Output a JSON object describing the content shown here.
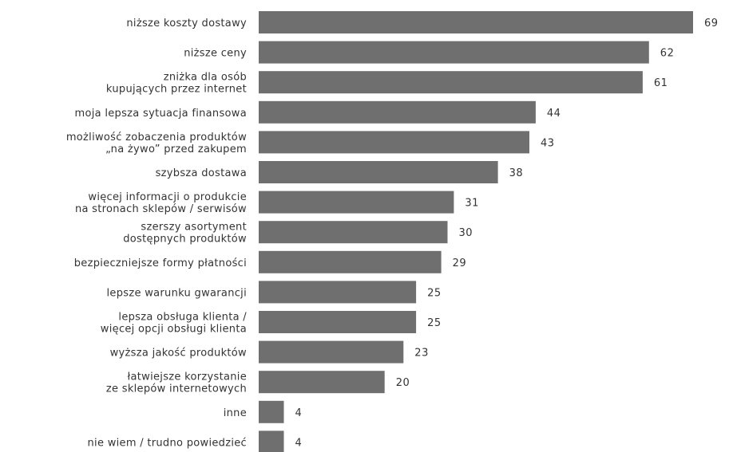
{
  "chart_data": {
    "type": "bar",
    "orientation": "horizontal",
    "bar_color": "#6f6f6f",
    "text_color": "#333333",
    "grid": false,
    "categories": [
      [
        "niższe koszty dostawy"
      ],
      [
        "niższe ceny"
      ],
      [
        "zniżka dla osób",
        "kupujących przez internet"
      ],
      [
        "moja lepsza sytuacja finansowa"
      ],
      [
        "możliwość zobaczenia produktów",
        "„na żywo” przed zakupem"
      ],
      [
        "szybsza dostawa"
      ],
      [
        "więcej informacji o produkcie",
        "na stronach sklepów / serwisów"
      ],
      [
        "szerszy asortyment",
        "dostępnych produktów"
      ],
      [
        "bezpieczniejsze formy płatności"
      ],
      [
        "lepsze warunku gwarancji"
      ],
      [
        "lepsza obsługa klienta /",
        "więcej opcji obsługi klienta"
      ],
      [
        "wyższa jakość produktów"
      ],
      [
        "łatwiejsze korzystanie",
        "ze sklepów internetowych"
      ],
      [
        "inne"
      ],
      [
        "nie wiem / trudno powiedzieć"
      ]
    ],
    "values": [
      69,
      62,
      61,
      44,
      43,
      38,
      31,
      30,
      29,
      25,
      25,
      23,
      20,
      4,
      4
    ],
    "value_labels": [
      "69",
      "62",
      "61",
      "44",
      "43",
      "38",
      "31",
      "30",
      "29",
      "25",
      "25",
      "23",
      "20",
      "4",
      "4"
    ],
    "xlim": [
      0,
      69
    ]
  }
}
